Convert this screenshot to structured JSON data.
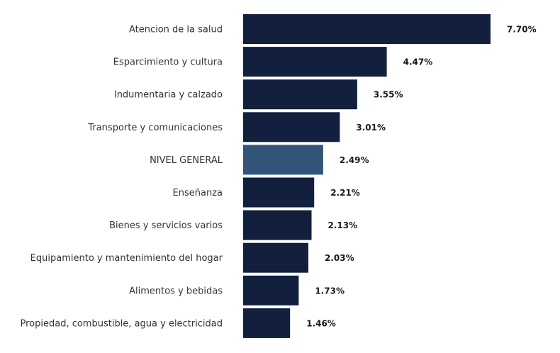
{
  "chart_data": {
    "type": "bar",
    "orientation": "horizontal",
    "title": "",
    "xlabel": "",
    "ylabel": "",
    "xlim": [
      0,
      7.7
    ],
    "grid": false,
    "legend": "none",
    "categories": [
      "Atencion de la salud",
      "Esparcimiento y cultura",
      "Indumentaria y calzado",
      "Transporte y comunicaciones",
      "NIVEL GENERAL",
      "Enseñanza",
      "Bienes y servicios varios",
      "Equipamiento y mantenimiento del hogar",
      "Alimentos y bebidas",
      "Propiedad, combustible, agua y electricidad"
    ],
    "values": [
      7.7,
      4.47,
      3.55,
      3.01,
      2.49,
      2.21,
      2.13,
      2.03,
      1.73,
      1.46
    ],
    "value_labels": [
      "7.70%",
      "4.47%",
      "3.55%",
      "3.01%",
      "2.49%",
      "2.21%",
      "2.13%",
      "2.03%",
      "1.73%",
      "1.46%"
    ],
    "bar_colors": [
      "#121f3d",
      "#121f3d",
      "#121f3d",
      "#121f3d",
      "#33557a",
      "#121f3d",
      "#121f3d",
      "#121f3d",
      "#121f3d",
      "#121f3d"
    ]
  }
}
